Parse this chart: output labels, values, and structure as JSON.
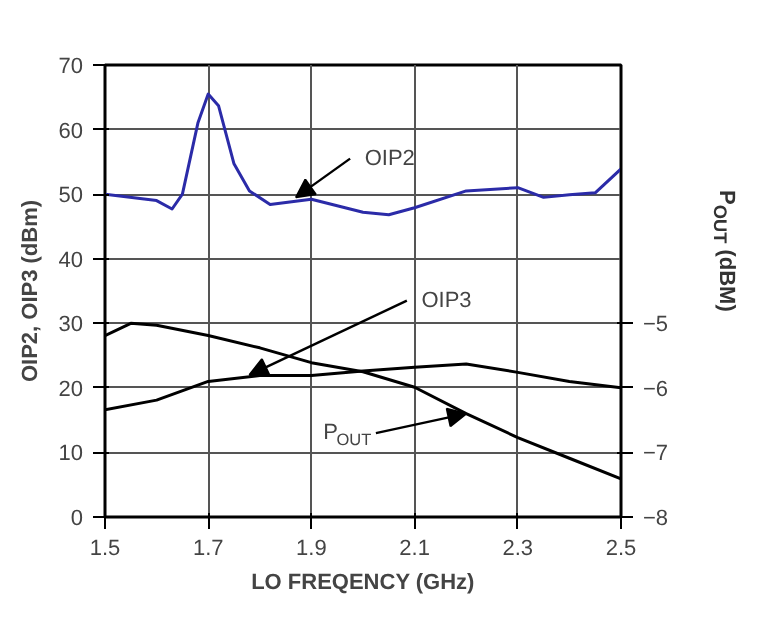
{
  "chart_data": {
    "type": "line",
    "xlabel": "LO FREQENCY (GHz)",
    "ylabel": "OIP2, OIP3 (dBm)",
    "y2label": "P$_{OUT}$ (dBM)",
    "xlim": [
      1.5,
      2.5
    ],
    "xticks": [
      1.5,
      1.7,
      1.9,
      2.1,
      2.3,
      2.5
    ],
    "ylim": [
      0,
      70
    ],
    "yticks": [
      0,
      10,
      20,
      30,
      40,
      50,
      60,
      70
    ],
    "y2lim": [
      -8,
      -1
    ],
    "y2ticks": [
      -8,
      -7,
      -6,
      -5
    ],
    "grid": true,
    "marker": "none",
    "line_style": "solid",
    "series": [
      {
        "color": "#2b2ba8",
        "x": [
          1.5,
          1.6,
          1.63,
          1.65,
          1.68,
          1.7,
          1.72,
          1.75,
          1.78,
          1.82,
          1.9,
          2.0,
          2.05,
          2.1,
          2.2,
          2.3,
          2.35,
          2.4,
          2.45,
          2.5
        ],
        "values": [
          50,
          49,
          47.7,
          50,
          61,
          65.5,
          63.7,
          54.7,
          50.5,
          48.4,
          49.2,
          47.2,
          46.8,
          47.9,
          50.5,
          51,
          49.5,
          49.9,
          50.2,
          53.9
        ]
      },
      {
        "color": "#000000",
        "x": [
          1.5,
          1.6,
          1.7,
          1.8,
          1.9,
          2.0,
          2.1,
          2.2,
          2.3,
          2.4,
          2.5
        ],
        "values": [
          16.6,
          18.1,
          21,
          21.9,
          21.9,
          22.6,
          23.2,
          23.7,
          22.4,
          21,
          20
        ]
      },
      {
        "color": "#000000",
        "axis": "y2",
        "x": [
          1.5,
          1.55,
          1.6,
          1.7,
          1.8,
          1.9,
          2.0,
          2.1,
          2.2,
          2.3,
          2.4,
          2.5
        ],
        "values": [
          -5.19,
          -5.0,
          -5.03,
          -5.19,
          -5.38,
          -5.61,
          -5.75,
          -5.99,
          -6.4,
          -6.77,
          -7.09,
          -7.41
        ]
      }
    ],
    "annotations": [
      {
        "text": "OIP2",
        "x": 1.87,
        "y": 49.5
      },
      {
        "text": "OIP3",
        "x": 1.78,
        "y": 22
      },
      {
        "text": "P$_{OUT}$",
        "x": 2.2,
        "y": 16
      }
    ]
  }
}
